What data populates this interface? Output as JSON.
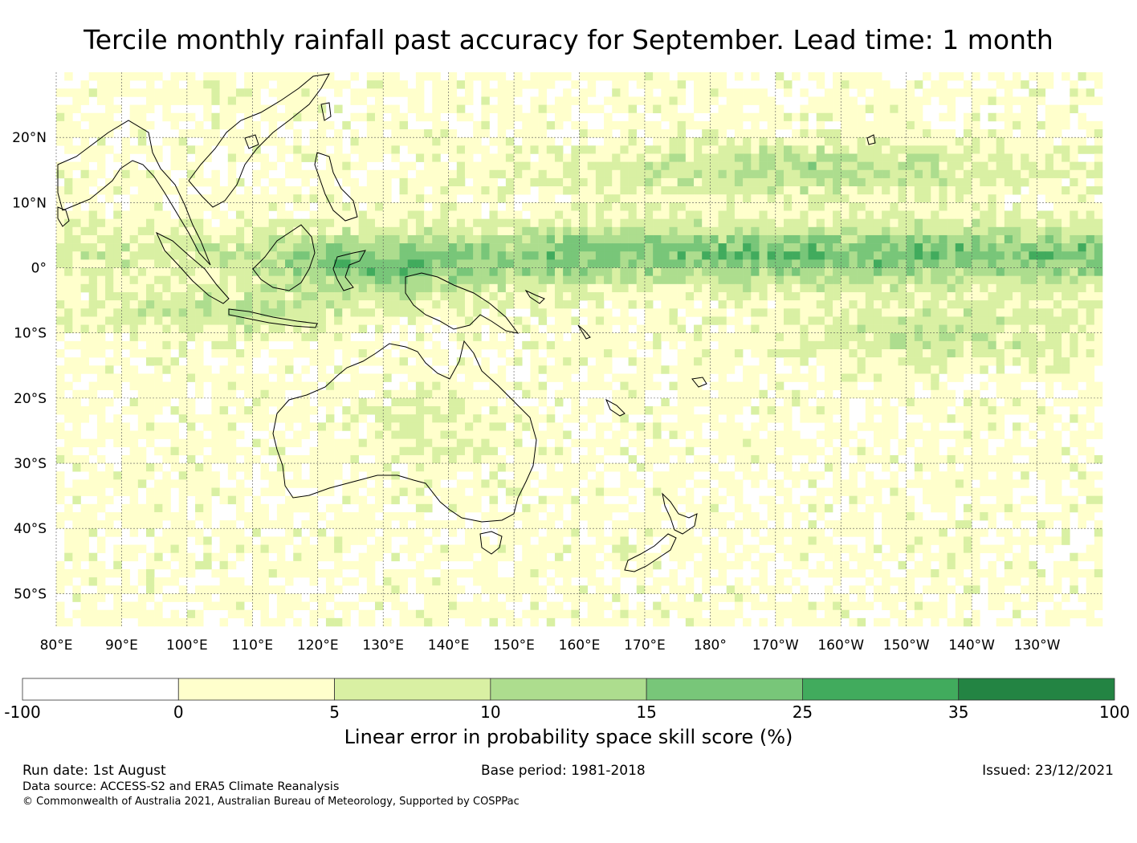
{
  "title": "Tercile monthly rainfall past accuracy for September. Lead time: 1 month",
  "lat_labels": [
    "20°N",
    "10°N",
    "0°",
    "10°S",
    "20°S",
    "30°S",
    "40°S",
    "50°S"
  ],
  "lon_labels": [
    "80°E",
    "90°E",
    "100°E",
    "110°E",
    "120°E",
    "130°E",
    "140°E",
    "150°E",
    "160°E",
    "170°E",
    "180°",
    "170°W",
    "160°W",
    "150°W",
    "140°W",
    "130°W"
  ],
  "colorbar": {
    "title": "Linear error in probability space skill score (%)",
    "ticks": [
      "-100",
      "0",
      "5",
      "10",
      "15",
      "25",
      "35",
      "100"
    ],
    "colors": [
      "#ffffff",
      "#ffffcc",
      "#d9f0a3",
      "#addd8e",
      "#78c679",
      "#41ab5d",
      "#238443"
    ]
  },
  "footer": {
    "run_date": "Run date: 1st August",
    "base_period": "Base period: 1981-2018",
    "issued": "Issued: 23/12/2021",
    "data_source": "Data source: ACCESS-S2 and ERA5 Climate Reanalysis",
    "copyright": "© Commonwealth of Australia 2021, Australian Bureau of Meteorology, Supported by COSPPac"
  }
}
